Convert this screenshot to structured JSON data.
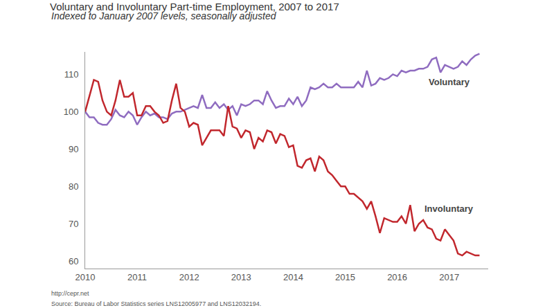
{
  "chart_data": {
    "type": "line",
    "title": "Voluntary and Involuntary Part-time Employment, 2007 to 2017",
    "subtitle": "Indexed to January 2007 levels, seasonally adjusted",
    "annotations": [
      "http://cepr.net",
      "Source: Bureau of Labor Statistics series LNS12005977 and LNS12032194."
    ],
    "x": [
      2010,
      2010.083,
      2010.167,
      2010.25,
      2010.333,
      2010.417,
      2010.5,
      2010.583,
      2010.667,
      2010.75,
      2010.833,
      2010.917,
      2011,
      2011.083,
      2011.167,
      2011.25,
      2011.333,
      2011.417,
      2011.5,
      2011.583,
      2011.667,
      2011.75,
      2011.833,
      2011.917,
      2012,
      2012.083,
      2012.167,
      2012.25,
      2012.333,
      2012.417,
      2012.5,
      2012.583,
      2012.667,
      2012.75,
      2012.833,
      2012.917,
      2013,
      2013.083,
      2013.167,
      2013.25,
      2013.333,
      2013.417,
      2013.5,
      2013.583,
      2013.667,
      2013.75,
      2013.833,
      2013.917,
      2014,
      2014.083,
      2014.167,
      2014.25,
      2014.333,
      2014.417,
      2014.5,
      2014.583,
      2014.667,
      2014.75,
      2014.833,
      2014.917,
      2015,
      2015.083,
      2015.167,
      2015.25,
      2015.333,
      2015.417,
      2015.5,
      2015.583,
      2015.667,
      2015.75,
      2015.833,
      2015.917,
      2016,
      2016.083,
      2016.167,
      2016.25,
      2016.333,
      2016.417,
      2016.5,
      2016.583,
      2016.667,
      2016.75,
      2016.833,
      2016.917,
      2017,
      2017.083,
      2017.167,
      2017.25,
      2017.333,
      2017.417,
      2017.5,
      2017.583
    ],
    "series": [
      {
        "name": "Voluntary",
        "color": "#8f6cc0",
        "values": [
          100,
          98.5,
          98.5,
          97,
          96.5,
          96.5,
          98,
          100.5,
          99,
          98.5,
          100,
          99,
          96.5,
          98.5,
          100,
          99,
          99.5,
          98.5,
          98.5,
          98,
          99.5,
          100,
          100,
          100.5,
          101,
          101.5,
          101,
          104.5,
          101,
          101,
          102.5,
          101,
          102,
          100.5,
          101.5,
          99,
          102,
          101.5,
          102,
          103,
          103,
          102,
          105.5,
          103,
          101,
          101.5,
          101.5,
          103.5,
          102,
          104,
          101.5,
          103,
          106.5,
          106,
          106.5,
          107.5,
          106.5,
          106.5,
          107.5,
          106.5,
          106.5,
          106.5,
          106.5,
          108,
          106.5,
          111,
          107,
          107.5,
          109,
          108.5,
          109,
          110,
          109.5,
          111,
          110.5,
          111,
          111,
          111.5,
          111.5,
          112,
          114,
          114.5,
          110.5,
          112.5,
          112,
          111.5,
          112,
          113.5,
          112.5,
          114,
          115,
          115.5
        ]
      },
      {
        "name": "Involuntary",
        "color": "#c1272d",
        "values": [
          100,
          104,
          108.5,
          108,
          103,
          100,
          99,
          103,
          108.5,
          104,
          104,
          105,
          99,
          99,
          101.5,
          101.5,
          100,
          99,
          97,
          97.5,
          103,
          107.5,
          101,
          100,
          96,
          97,
          96.5,
          91,
          93,
          95,
          95,
          95,
          93.5,
          101.5,
          96,
          95.5,
          93,
          95,
          94.5,
          90,
          93,
          92,
          95,
          94.5,
          91.5,
          94,
          93.5,
          90.5,
          91,
          85.5,
          85,
          87,
          87.5,
          84,
          88,
          87,
          84,
          83,
          81.5,
          80,
          80,
          78,
          78,
          77,
          76,
          74,
          76,
          72,
          67.5,
          71.5,
          71,
          70.5,
          70.5,
          72,
          70,
          75,
          68,
          70,
          71,
          69,
          68.5,
          66,
          65.5,
          68.5,
          67,
          65.5,
          62,
          61.5,
          62.5,
          62,
          61.5,
          61.5
        ]
      }
    ],
    "xlim": [
      2010,
      2017.75
    ],
    "xticks": [
      2010,
      2011,
      2012,
      2013,
      2014,
      2015,
      2016,
      2017
    ],
    "ylim": [
      58,
      116
    ],
    "yticks": [
      60,
      70,
      80,
      90,
      100,
      110
    ],
    "grid": false
  }
}
